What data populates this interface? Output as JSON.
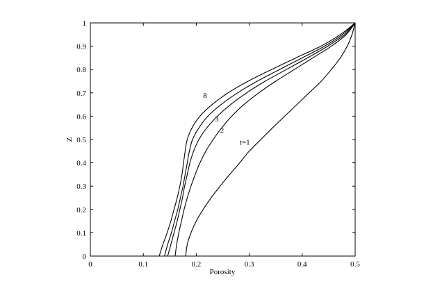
{
  "chart_data": {
    "type": "line",
    "title": "",
    "xlabel": "Porosity",
    "ylabel": "Z",
    "xlim": [
      0,
      0.5
    ],
    "ylim": [
      0,
      1
    ],
    "xticks": [
      0,
      0.1,
      0.2,
      0.3,
      0.4,
      0.5
    ],
    "xtick_labels": [
      "0",
      "0.1",
      "0.2",
      "0.3",
      "0.4",
      "0.5"
    ],
    "yticks": [
      0,
      0.1,
      0.2,
      0.3,
      0.4,
      0.5,
      0.6,
      0.7,
      0.8,
      0.9,
      1
    ],
    "ytick_labels": [
      "0",
      "0.1",
      "0.2",
      "0.3",
      "0.4",
      "0.5",
      "0.6",
      "0.7",
      "0.8",
      "0.9",
      "1"
    ],
    "grid": false,
    "legend": "none",
    "line_color": "#000000",
    "series": [
      {
        "name": "t=1",
        "label_at": [
          0.282,
          0.49
        ],
        "points": [
          [
            0.18,
            0
          ],
          [
            0.183,
            0.05
          ],
          [
            0.19,
            0.1
          ],
          [
            0.2,
            0.15
          ],
          [
            0.213,
            0.2
          ],
          [
            0.228,
            0.25
          ],
          [
            0.245,
            0.3
          ],
          [
            0.263,
            0.35
          ],
          [
            0.282,
            0.4
          ],
          [
            0.3,
            0.45
          ],
          [
            0.322,
            0.5
          ],
          [
            0.344,
            0.55
          ],
          [
            0.367,
            0.6
          ],
          [
            0.39,
            0.65
          ],
          [
            0.413,
            0.7
          ],
          [
            0.436,
            0.75
          ],
          [
            0.455,
            0.8
          ],
          [
            0.472,
            0.85
          ],
          [
            0.485,
            0.9
          ],
          [
            0.494,
            0.95
          ],
          [
            0.5,
            1
          ]
        ]
      },
      {
        "name": "2",
        "label_at": [
          0.245,
          0.54
        ],
        "points": [
          [
            0.16,
            0
          ],
          [
            0.163,
            0.05
          ],
          [
            0.167,
            0.1
          ],
          [
            0.172,
            0.15
          ],
          [
            0.177,
            0.2
          ],
          [
            0.183,
            0.25
          ],
          [
            0.19,
            0.3
          ],
          [
            0.198,
            0.35
          ],
          [
            0.207,
            0.4
          ],
          [
            0.218,
            0.45
          ],
          [
            0.232,
            0.5
          ],
          [
            0.248,
            0.55
          ],
          [
            0.267,
            0.6
          ],
          [
            0.29,
            0.65
          ],
          [
            0.318,
            0.7
          ],
          [
            0.35,
            0.75
          ],
          [
            0.385,
            0.8
          ],
          [
            0.42,
            0.85
          ],
          [
            0.455,
            0.9
          ],
          [
            0.483,
            0.95
          ],
          [
            0.5,
            1
          ]
        ]
      },
      {
        "name": "3",
        "label_at": [
          0.235,
          0.59
        ],
        "points": [
          [
            0.146,
            0
          ],
          [
            0.152,
            0.05
          ],
          [
            0.158,
            0.1
          ],
          [
            0.164,
            0.15
          ],
          [
            0.169,
            0.2
          ],
          [
            0.174,
            0.25
          ],
          [
            0.178,
            0.3
          ],
          [
            0.183,
            0.35
          ],
          [
            0.188,
            0.4
          ],
          [
            0.195,
            0.45
          ],
          [
            0.205,
            0.5
          ],
          [
            0.22,
            0.55
          ],
          [
            0.24,
            0.6
          ],
          [
            0.265,
            0.65
          ],
          [
            0.295,
            0.7
          ],
          [
            0.33,
            0.75
          ],
          [
            0.37,
            0.8
          ],
          [
            0.41,
            0.85
          ],
          [
            0.448,
            0.9
          ],
          [
            0.48,
            0.95
          ],
          [
            0.5,
            1
          ]
        ]
      },
      {
        "name": "",
        "points": [
          [
            0.14,
            0
          ],
          [
            0.146,
            0.05
          ],
          [
            0.153,
            0.1
          ],
          [
            0.159,
            0.15
          ],
          [
            0.165,
            0.2
          ],
          [
            0.17,
            0.25
          ],
          [
            0.175,
            0.3
          ],
          [
            0.179,
            0.35
          ],
          [
            0.183,
            0.4
          ],
          [
            0.187,
            0.45
          ],
          [
            0.193,
            0.5
          ],
          [
            0.205,
            0.55
          ],
          [
            0.222,
            0.6
          ],
          [
            0.247,
            0.65
          ],
          [
            0.278,
            0.7
          ],
          [
            0.315,
            0.75
          ],
          [
            0.357,
            0.8
          ],
          [
            0.4,
            0.85
          ],
          [
            0.442,
            0.9
          ],
          [
            0.476,
            0.95
          ],
          [
            0.5,
            1
          ]
        ]
      },
      {
        "name": "8",
        "label_at": [
          0.213,
          0.69
        ],
        "points": [
          [
            0.13,
            0
          ],
          [
            0.137,
            0.05
          ],
          [
            0.145,
            0.1
          ],
          [
            0.152,
            0.15
          ],
          [
            0.158,
            0.2
          ],
          [
            0.164,
            0.25
          ],
          [
            0.169,
            0.3
          ],
          [
            0.173,
            0.35
          ],
          [
            0.176,
            0.4
          ],
          [
            0.179,
            0.45
          ],
          [
            0.183,
            0.5
          ],
          [
            0.192,
            0.55
          ],
          [
            0.207,
            0.6
          ],
          [
            0.23,
            0.65
          ],
          [
            0.26,
            0.7
          ],
          [
            0.298,
            0.75
          ],
          [
            0.342,
            0.8
          ],
          [
            0.388,
            0.85
          ],
          [
            0.435,
            0.9
          ],
          [
            0.472,
            0.95
          ],
          [
            0.5,
            1
          ]
        ]
      }
    ]
  }
}
